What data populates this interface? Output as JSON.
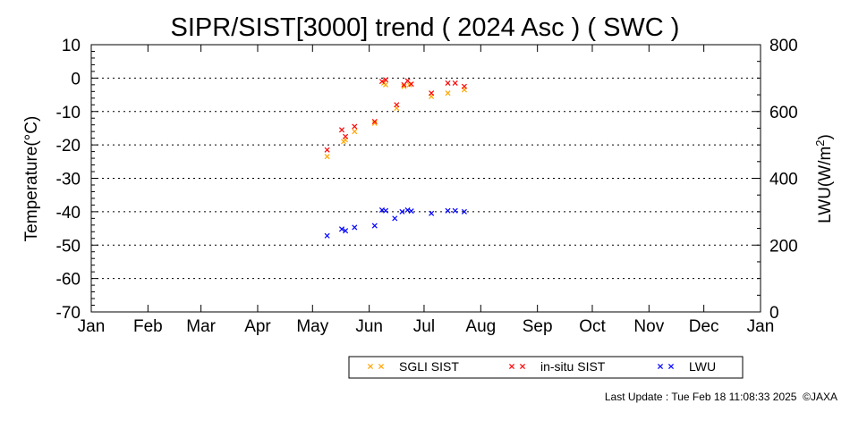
{
  "chart_data": {
    "type": "scatter",
    "title": "SIPR/SIST[3000] trend ( 2024 Asc ) ( SWC )",
    "ylabel": "Temperature(°C)",
    "y2label_main": "LWU(W/m",
    "y2label_sup": "2",
    "y2label_end": ")",
    "ylim": [
      -70,
      10
    ],
    "y2lim": [
      0,
      800
    ],
    "xlim": [
      "2024-01-01",
      "2025-01-01"
    ],
    "x_tick_labels": [
      "Jan",
      "Feb",
      "Mar",
      "Apr",
      "May",
      "Jun",
      "Jul",
      "Aug",
      "Sep",
      "Oct",
      "Nov",
      "Dec",
      "Jan"
    ],
    "y_ticks": [
      10,
      0,
      -10,
      -20,
      -30,
      -40,
      -50,
      -60,
      -70
    ],
    "y2_ticks": [
      800,
      600,
      400,
      200,
      0
    ],
    "grid": "dotted horizontal",
    "legend_position": "bottom-right",
    "series": [
      {
        "name": "SGLI SIST",
        "axis": "left",
        "color": "#ffa500",
        "points": [
          [
            "2024-05-09",
            -23.5
          ],
          [
            "2024-05-18",
            -19
          ],
          [
            "2024-05-19",
            -18.5
          ],
          [
            "2024-05-24",
            -16
          ],
          [
            "2024-06-04",
            -13.5
          ],
          [
            "2024-06-09",
            -1.5
          ],
          [
            "2024-06-10",
            -2
          ],
          [
            "2024-06-16",
            -9
          ],
          [
            "2024-06-20",
            -2.5
          ],
          [
            "2024-06-23",
            -2
          ],
          [
            "2024-07-05",
            -5.5
          ],
          [
            "2024-07-14",
            -4.5
          ],
          [
            "2024-07-23",
            -3.5
          ]
        ]
      },
      {
        "name": "in-situ SIST",
        "axis": "left",
        "color": "#ff0000",
        "points": [
          [
            "2024-05-09",
            -21.5
          ],
          [
            "2024-05-17",
            -15.5
          ],
          [
            "2024-05-19",
            -17.5
          ],
          [
            "2024-05-24",
            -14.5
          ],
          [
            "2024-06-04",
            -13
          ],
          [
            "2024-06-08",
            -1
          ],
          [
            "2024-06-10",
            -0.5
          ],
          [
            "2024-06-16",
            -8
          ],
          [
            "2024-06-20",
            -2
          ],
          [
            "2024-06-22",
            -0.8
          ],
          [
            "2024-06-24",
            -1.8
          ],
          [
            "2024-07-05",
            -4.5
          ],
          [
            "2024-07-14",
            -1.5
          ],
          [
            "2024-07-18",
            -1.5
          ],
          [
            "2024-07-23",
            -2.5
          ]
        ]
      },
      {
        "name": "LWU",
        "axis": "right",
        "color": "#0000ff",
        "points": [
          [
            "2024-05-09",
            228
          ],
          [
            "2024-05-17",
            248
          ],
          [
            "2024-05-19",
            243
          ],
          [
            "2024-05-24",
            253
          ],
          [
            "2024-06-04",
            258
          ],
          [
            "2024-06-08",
            305
          ],
          [
            "2024-06-10",
            303
          ],
          [
            "2024-06-15",
            280
          ],
          [
            "2024-06-19",
            300
          ],
          [
            "2024-06-22",
            305
          ],
          [
            "2024-06-24",
            302
          ],
          [
            "2024-07-05",
            295
          ],
          [
            "2024-07-14",
            303
          ],
          [
            "2024-07-18",
            303
          ],
          [
            "2024-07-23",
            300
          ]
        ]
      }
    ]
  },
  "footer": {
    "last_update": "Last Update : Tue Feb 18 11:08:33 2025",
    "copyright": "©JAXA"
  }
}
